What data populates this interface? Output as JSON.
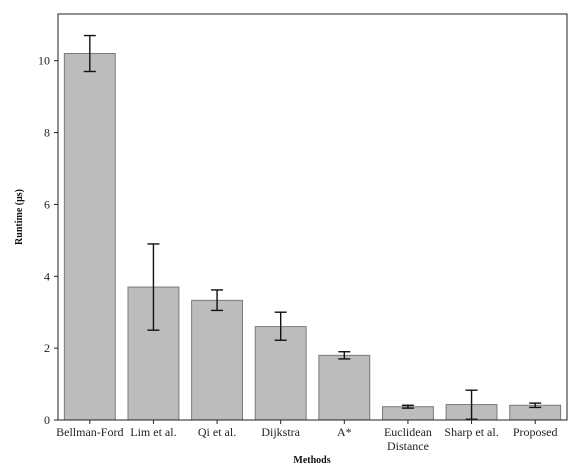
{
  "chart_data": {
    "type": "bar",
    "title": "",
    "xlabel": "Methods",
    "ylabel": "Runtime (μs)",
    "ylim": [
      0,
      11.3
    ],
    "yticks": [
      0,
      2,
      4,
      6,
      8,
      10
    ],
    "grid": false,
    "bar_color": "#bcbcbc",
    "bar_edge_color": "#7a7a7a",
    "categories": [
      [
        "Bellman-Ford"
      ],
      [
        "Lim et al."
      ],
      [
        "Qi et al."
      ],
      [
        "Dijkstra"
      ],
      [
        "A*"
      ],
      [
        "Euclidean",
        "Distance"
      ],
      [
        "Sharp et al."
      ],
      [
        "Proposed"
      ]
    ],
    "values": [
      10.2,
      3.7,
      3.33,
      2.6,
      1.8,
      0.37,
      0.43,
      0.41
    ],
    "error_low": [
      9.7,
      2.5,
      3.05,
      2.22,
      1.7,
      0.33,
      0.02,
      0.35
    ],
    "error_high": [
      10.7,
      4.9,
      3.62,
      3.0,
      1.9,
      0.41,
      0.83,
      0.47
    ]
  }
}
